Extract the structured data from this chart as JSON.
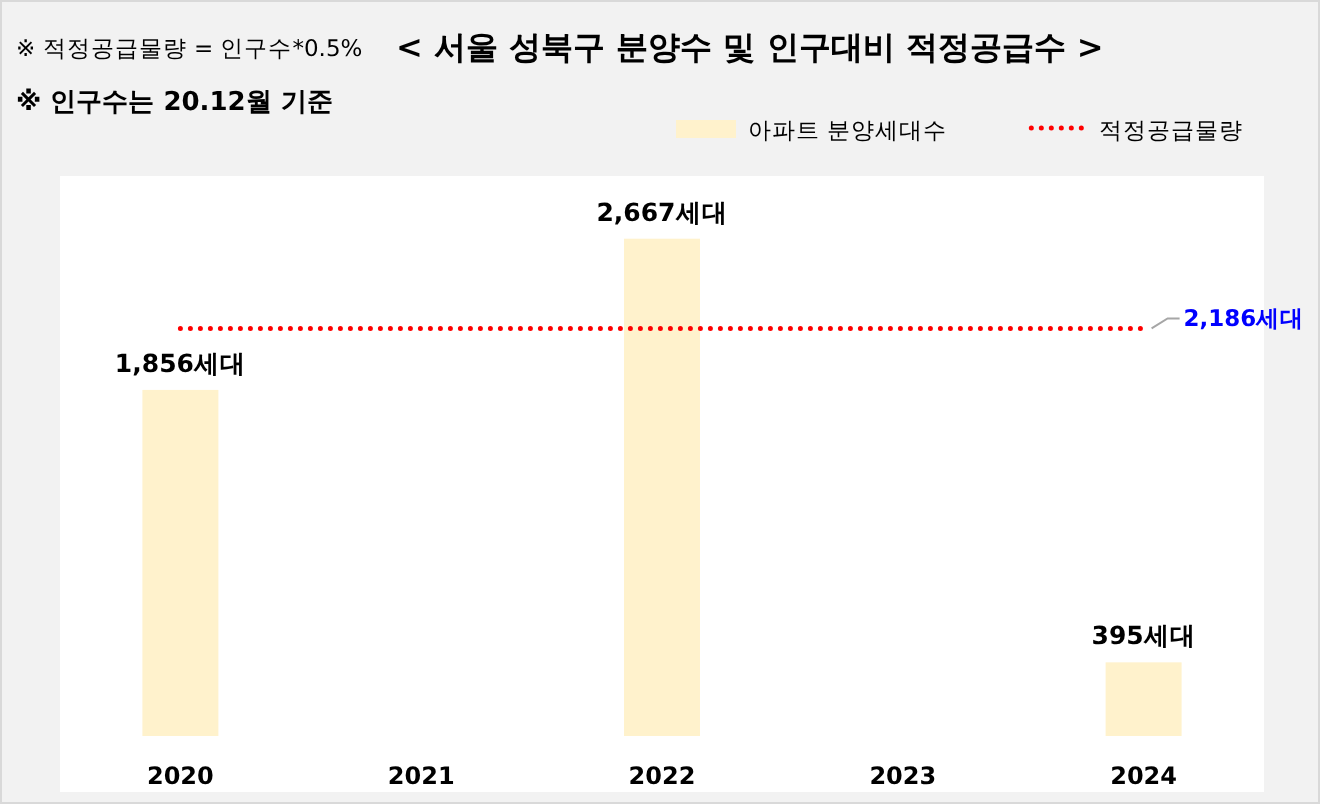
{
  "chart_data": {
    "type": "bar",
    "title": "< 서울 성북구 분양수 및 인구대비 적정공급수 >",
    "annotations": [
      "※ 적정공급물량 = 인구수*0.5%",
      "※ 인구수는 20.12월 기준"
    ],
    "categories": [
      "2020",
      "2021",
      "2022",
      "2023",
      "2024"
    ],
    "series": [
      {
        "name": "아파트 분양세대수",
        "color": "#fff2cc",
        "values": [
          1856,
          null,
          2667,
          null,
          395
        ],
        "value_labels": [
          "1,856세대",
          null,
          "2,667세대",
          null,
          "395세대"
        ]
      },
      {
        "name": "적정공급물량",
        "type": "line",
        "color": "#ff0000",
        "line_style": "dotted",
        "values": [
          2186,
          2186,
          2186,
          2186,
          2186
        ],
        "value_labels": [
          null,
          null,
          null,
          null,
          "2,186세대"
        ]
      }
    ],
    "legend": "top right"
  }
}
